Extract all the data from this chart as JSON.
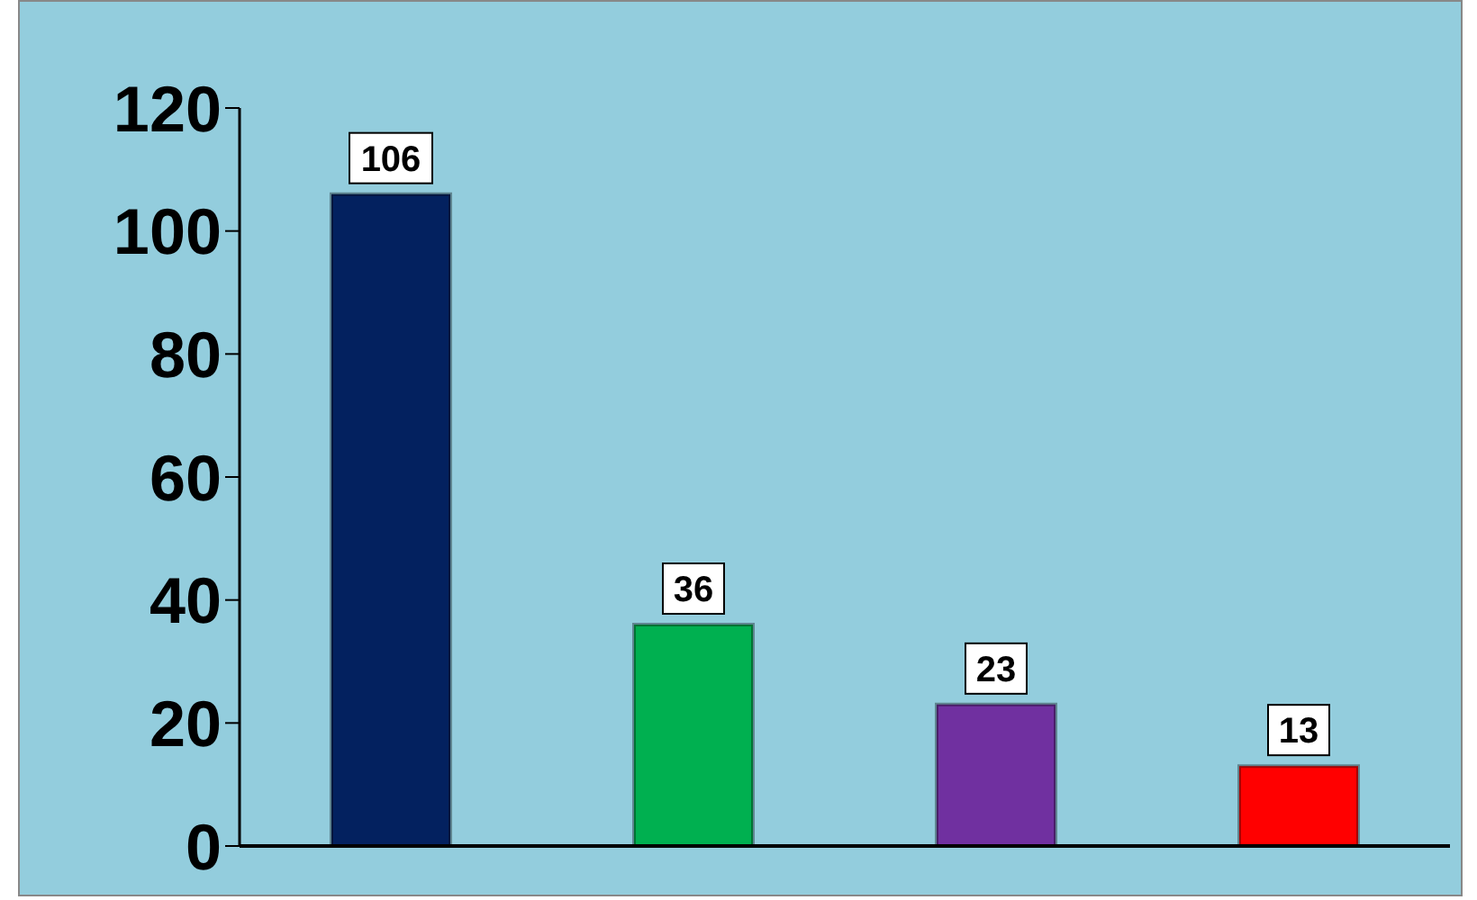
{
  "chart_data": {
    "type": "bar",
    "categories": [
      null,
      null,
      null,
      null
    ],
    "values": [
      106,
      36,
      23,
      13
    ],
    "colors": [
      "#03215f",
      "#00b050",
      "#7030a0",
      "#ff0000"
    ],
    "ylim": [
      0,
      120
    ],
    "yticks": [
      0,
      20,
      40,
      60,
      80,
      100,
      120
    ],
    "data_labels": true
  }
}
